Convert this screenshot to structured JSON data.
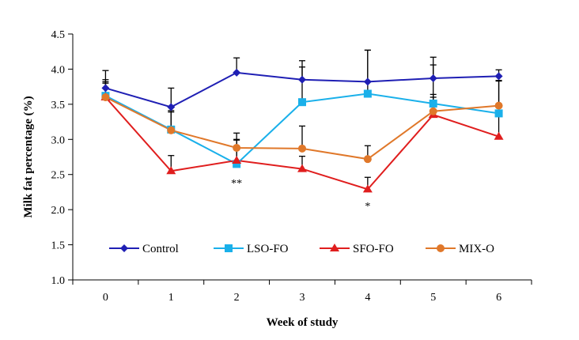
{
  "chart_data": {
    "type": "line",
    "title": "",
    "xlabel": "Week of study",
    "ylabel": "Milk fat percentage (%)",
    "x": [
      0,
      1,
      2,
      3,
      4,
      5,
      6
    ],
    "x_tick_labels": [
      "0",
      "1",
      "2",
      "3",
      "4",
      "5",
      "6"
    ],
    "ylim": [
      1.0,
      4.5
    ],
    "y_ticks": [
      1.0,
      1.5,
      2.0,
      2.5,
      3.0,
      3.5,
      4.0,
      4.5
    ],
    "y_tick_labels": [
      "1.0",
      "1.5",
      "2.0",
      "2.5",
      "3.0",
      "3.5",
      "4.0",
      "4.5"
    ],
    "grid": false,
    "legend_position": "bottom-center",
    "series": [
      {
        "name": "Control",
        "color": "#1f1fb4",
        "marker": "diamond",
        "values": [
          3.73,
          3.46,
          3.95,
          3.85,
          3.82,
          3.87,
          3.9
        ],
        "error_upper": [
          0.25,
          0.27,
          0.21,
          0.27,
          0.45,
          0.3,
          0.09
        ]
      },
      {
        "name": "LSO-FO",
        "color": "#1ab0ea",
        "marker": "square",
        "values": [
          3.62,
          3.14,
          2.65,
          3.53,
          3.65,
          3.51,
          3.37
        ],
        "error_upper": [
          0.23,
          0.25,
          0.34,
          0.5,
          0.62,
          0.55,
          0.46
        ]
      },
      {
        "name": "SFO-FO",
        "color": "#e01e1e",
        "marker": "triangle",
        "values": [
          3.6,
          2.55,
          2.7,
          2.58,
          2.29,
          3.35,
          3.04
        ],
        "error_upper": [
          0.2,
          0.22,
          0.3,
          0.18,
          0.17,
          0.25,
          0.42
        ]
      },
      {
        "name": "MIX-O",
        "color": "#e0782a",
        "marker": "circle",
        "values": [
          3.6,
          3.13,
          2.88,
          2.87,
          2.72,
          3.4,
          3.48
        ],
        "error_upper": [
          0.22,
          0.28,
          0.21,
          0.32,
          0.19,
          0.24,
          0.36
        ]
      }
    ],
    "annotations": [
      {
        "text": "**",
        "x": 2,
        "y": 2.33
      },
      {
        "text": "*",
        "x": 4,
        "y": 2.0
      }
    ]
  }
}
